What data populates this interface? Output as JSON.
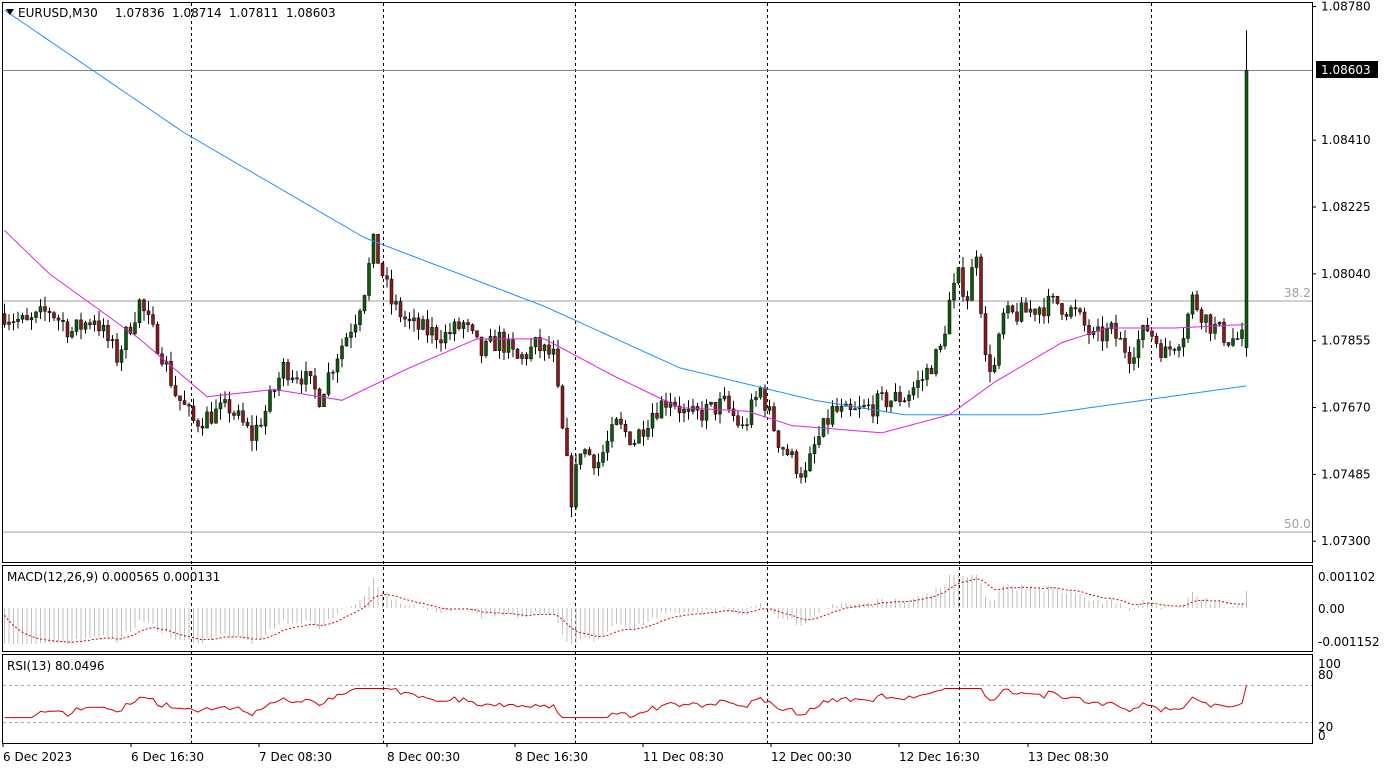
{
  "header": {
    "symbol": "EURUSD,M30",
    "open": "1.07836",
    "high": "1.08714",
    "low": "1.07811",
    "close": "1.08603"
  },
  "price_axis": {
    "ticks": [
      "1.08780",
      "1.08410",
      "1.08225",
      "1.08040",
      "1.07855",
      "1.07670",
      "1.07485",
      "1.07300"
    ],
    "current": "1.08603"
  },
  "fib_levels": [
    {
      "label": "38.2",
      "price": 1.07965
    },
    {
      "label": "50.0",
      "price": 1.07325
    }
  ],
  "macd": {
    "label": "MACD(12,26,9) 0.000565 0.000131",
    "ticks": [
      "0.001102",
      "0.00",
      "-0.001152"
    ]
  },
  "rsi": {
    "label": "RSI(13) 80.0496",
    "ticks": [
      "100",
      "80",
      "20",
      "0"
    ]
  },
  "time_axis": [
    "6 Dec 2023",
    "6 Dec 16:30",
    "7 Dec 08:30",
    "8 Dec 00:30",
    "8 Dec 16:30",
    "11 Dec 08:30",
    "12 Dec 00:30",
    "12 Dec 16:30",
    "13 Dec 08:30"
  ],
  "colors": {
    "bull": "#0b5d0b",
    "bear": "#8b1a1a",
    "ma_slow": "#1e90ff",
    "ma_fast": "#e020e0",
    "signal": "#d40000",
    "rsi": "#d40000",
    "grid": "#000000"
  },
  "chart_data": {
    "type": "candlestick",
    "title": "EURUSD,M30",
    "ylim": [
      1.0723,
      1.0878
    ],
    "waypoints_close": [
      [
        0,
        1.0793
      ],
      [
        5,
        1.079
      ],
      [
        10,
        1.0794
      ],
      [
        15,
        1.0788
      ],
      [
        20,
        1.0792
      ],
      [
        25,
        1.0781
      ],
      [
        30,
        1.0796
      ],
      [
        35,
        1.0782
      ],
      [
        38,
        1.0771
      ],
      [
        42,
        1.0763
      ],
      [
        46,
        1.0765
      ],
      [
        50,
        1.0767
      ],
      [
        55,
        1.0759
      ],
      [
        58,
        1.0766
      ],
      [
        62,
        1.0778
      ],
      [
        66,
        1.0776
      ],
      [
        70,
        1.077
      ],
      [
        74,
        1.0782
      ],
      [
        78,
        1.0792
      ],
      [
        80,
        1.08
      ],
      [
        82,
        1.0812
      ],
      [
        86,
        1.0796
      ],
      [
        90,
        1.079
      ],
      [
        94,
        1.0788
      ],
      [
        98,
        1.0787
      ],
      [
        102,
        1.079
      ],
      [
        106,
        1.0782
      ],
      [
        110,
        1.0786
      ],
      [
        114,
        1.078
      ],
      [
        118,
        1.0784
      ],
      [
        122,
        1.0781
      ],
      [
        124,
        1.076
      ],
      [
        126,
        1.0742
      ],
      [
        128,
        1.0756
      ],
      [
        132,
        1.0752
      ],
      [
        136,
        1.0762
      ],
      [
        140,
        1.0758
      ],
      [
        144,
        1.0766
      ],
      [
        148,
        1.077
      ],
      [
        152,
        1.0764
      ],
      [
        156,
        1.0766
      ],
      [
        160,
        1.0768
      ],
      [
        164,
        1.0761
      ],
      [
        168,
        1.0772
      ],
      [
        172,
        1.0758
      ],
      [
        176,
        1.0751
      ],
      [
        178,
        1.0748
      ],
      [
        180,
        1.0756
      ],
      [
        184,
        1.0766
      ],
      [
        188,
        1.0765
      ],
      [
        192,
        1.0767
      ],
      [
        196,
        1.0769
      ],
      [
        200,
        1.077
      ],
      [
        204,
        1.0775
      ],
      [
        208,
        1.0783
      ],
      [
        210,
        1.0796
      ],
      [
        212,
        1.0803
      ],
      [
        214,
        1.0798
      ],
      [
        216,
        1.0811
      ],
      [
        218,
        1.078
      ],
      [
        220,
        1.0778
      ],
      [
        222,
        1.0792
      ],
      [
        226,
        1.0793
      ],
      [
        230,
        1.0795
      ],
      [
        234,
        1.0796
      ],
      [
        238,
        1.0793
      ],
      [
        242,
        1.0786
      ],
      [
        246,
        1.0788
      ],
      [
        250,
        1.0782
      ],
      [
        254,
        1.0789
      ],
      [
        258,
        1.0782
      ],
      [
        262,
        1.0788
      ],
      [
        264,
        1.0797
      ],
      [
        268,
        1.079
      ],
      [
        272,
        1.0786
      ],
      [
        275,
        1.0786
      ],
      [
        276,
        1.086
      ]
    ],
    "ma_slow_waypoints": [
      [
        0,
        1.0877
      ],
      [
        40,
        1.0843
      ],
      [
        80,
        1.0814
      ],
      [
        120,
        1.0795
      ],
      [
        150,
        1.0778
      ],
      [
        180,
        1.0769
      ],
      [
        200,
        1.0765
      ],
      [
        230,
        1.0765
      ],
      [
        276,
        1.0773
      ]
    ],
    "ma_fast_waypoints": [
      [
        0,
        1.0816
      ],
      [
        10,
        1.0804
      ],
      [
        20,
        1.0795
      ],
      [
        30,
        1.0786
      ],
      [
        45,
        1.077
      ],
      [
        60,
        1.0772
      ],
      [
        75,
        1.0769
      ],
      [
        90,
        1.0778
      ],
      [
        105,
        1.0786
      ],
      [
        120,
        1.0786
      ],
      [
        135,
        1.0776
      ],
      [
        150,
        1.0767
      ],
      [
        165,
        1.0766
      ],
      [
        175,
        1.0762
      ],
      [
        195,
        1.076
      ],
      [
        210,
        1.0765
      ],
      [
        220,
        1.0774
      ],
      [
        235,
        1.0785
      ],
      [
        245,
        1.0789
      ],
      [
        260,
        1.0789
      ],
      [
        276,
        1.079
      ]
    ]
  }
}
